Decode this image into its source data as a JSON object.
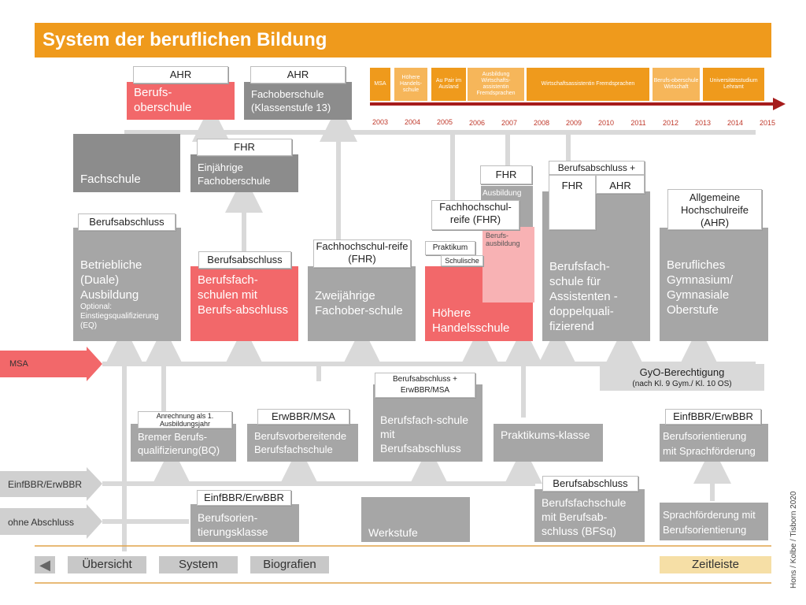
{
  "title": "System der beruflichen Bildung",
  "credit": "Hons / Kolbe / Tisborn 2020",
  "timeline": {
    "boxes": [
      "MSA",
      "Höhere Handels-schule",
      "Au Pair im Ausland",
      "Ausbildung Wirtschafts-assistentin Fremdsprachen",
      "Wirtschaftsassistentin Fremdsprachen",
      "Berufs-oberschule Wirtschaft",
      "Universitätsstudium Lehramt"
    ],
    "years": [
      "2003",
      "2004",
      "2005",
      "2006",
      "2007",
      "2008",
      "2009",
      "2010",
      "2011",
      "2012",
      "2013",
      "2014",
      "2015"
    ]
  },
  "top": {
    "bos_tag": "AHR",
    "bos": "Berufs-oberschule",
    "fos13_tag": "AHR",
    "fos13": "Fachoberschule (Klassenstufe 13)",
    "fos1_tag": "FHR",
    "fos1": "Einjährige Fachoberschule",
    "fachschule": "Fachschule"
  },
  "middle": {
    "dual_tag": "Berufsabschluss",
    "dual": "Betriebliche (Duale) Ausbildung",
    "dual_opt": "Optional: Einstiegsqualifizierung (EQ)",
    "bfs_tag": "Berufsabschluss",
    "bfs": "Berufsfach-schulen mit Berufs-abschluss",
    "fos2_tag": "Fachhochschul-reife (FHR)",
    "fos2": "Zweijährige Fachober-schule",
    "hhs_tag": "Fachhochschul-reife (FHR)",
    "hhs": "Höhere Handelsschule",
    "hhs_prak": "Praktikum",
    "hhs_schul": "Schulische",
    "hhs_fhr": "FHR",
    "hhs_ausb": "Ausbildung",
    "hhs_berufsausb": "Berufs-ausbildung",
    "bfsa_tag": "Berufsabschluss +",
    "bfsa_fhr": "FHR",
    "bfsa_ahr": "AHR",
    "bfsa": "Berufsfach-schule für Assistenten - doppelquali-fizierend",
    "gym_tag": "Allgemeine Hochschulreife (AHR)",
    "gym": "Berufliches Gymnasium/ Gymnasiale Oberstufe"
  },
  "msa_label": "MSA",
  "gyo": {
    "title": "GyO-Berechtigung",
    "sub": "(nach Kl. 9 Gym./  Kl. 10 OS)"
  },
  "lower": {
    "bq_tag": "Anrechnung als 1. Ausbildungsjahr",
    "bq": "Bremer Berufs-qualifizierung(BQ)",
    "bv_tag": "ErwBBR/MSA",
    "bv": "Berufsvorbereitende Berufsfachschule",
    "bfsb_tag": "Berufsabschluss + ErwBBR/MSA",
    "bfsb": "Berufsfach-schule mit Berufsabschluss",
    "prak": "Praktikums-klasse",
    "bos_sf_tag": "EinfBBR/ErwBBR",
    "bos_sf": "Berufsorientierung mit Sprachförderung"
  },
  "bottom": {
    "einf_label": "EinfBBR/ErwBBR",
    "ohne_label": "ohne Abschluss",
    "btk_tag": "EinfBBR/ErwBBR",
    "btk": "Berufsorien-tierungsklasse",
    "werk": "Werkstufe",
    "bfsq_tag": "Berufsabschluss",
    "bfsq": "Berufsfachschule mit Berufsab-schluss (BFSq)",
    "sf": "Sprachförderung mit Berufsorientierung"
  },
  "nav": {
    "back": "◀",
    "overview": "Übersicht",
    "system": "System",
    "bio": "Biografien",
    "timeline": "Zeitleiste"
  }
}
